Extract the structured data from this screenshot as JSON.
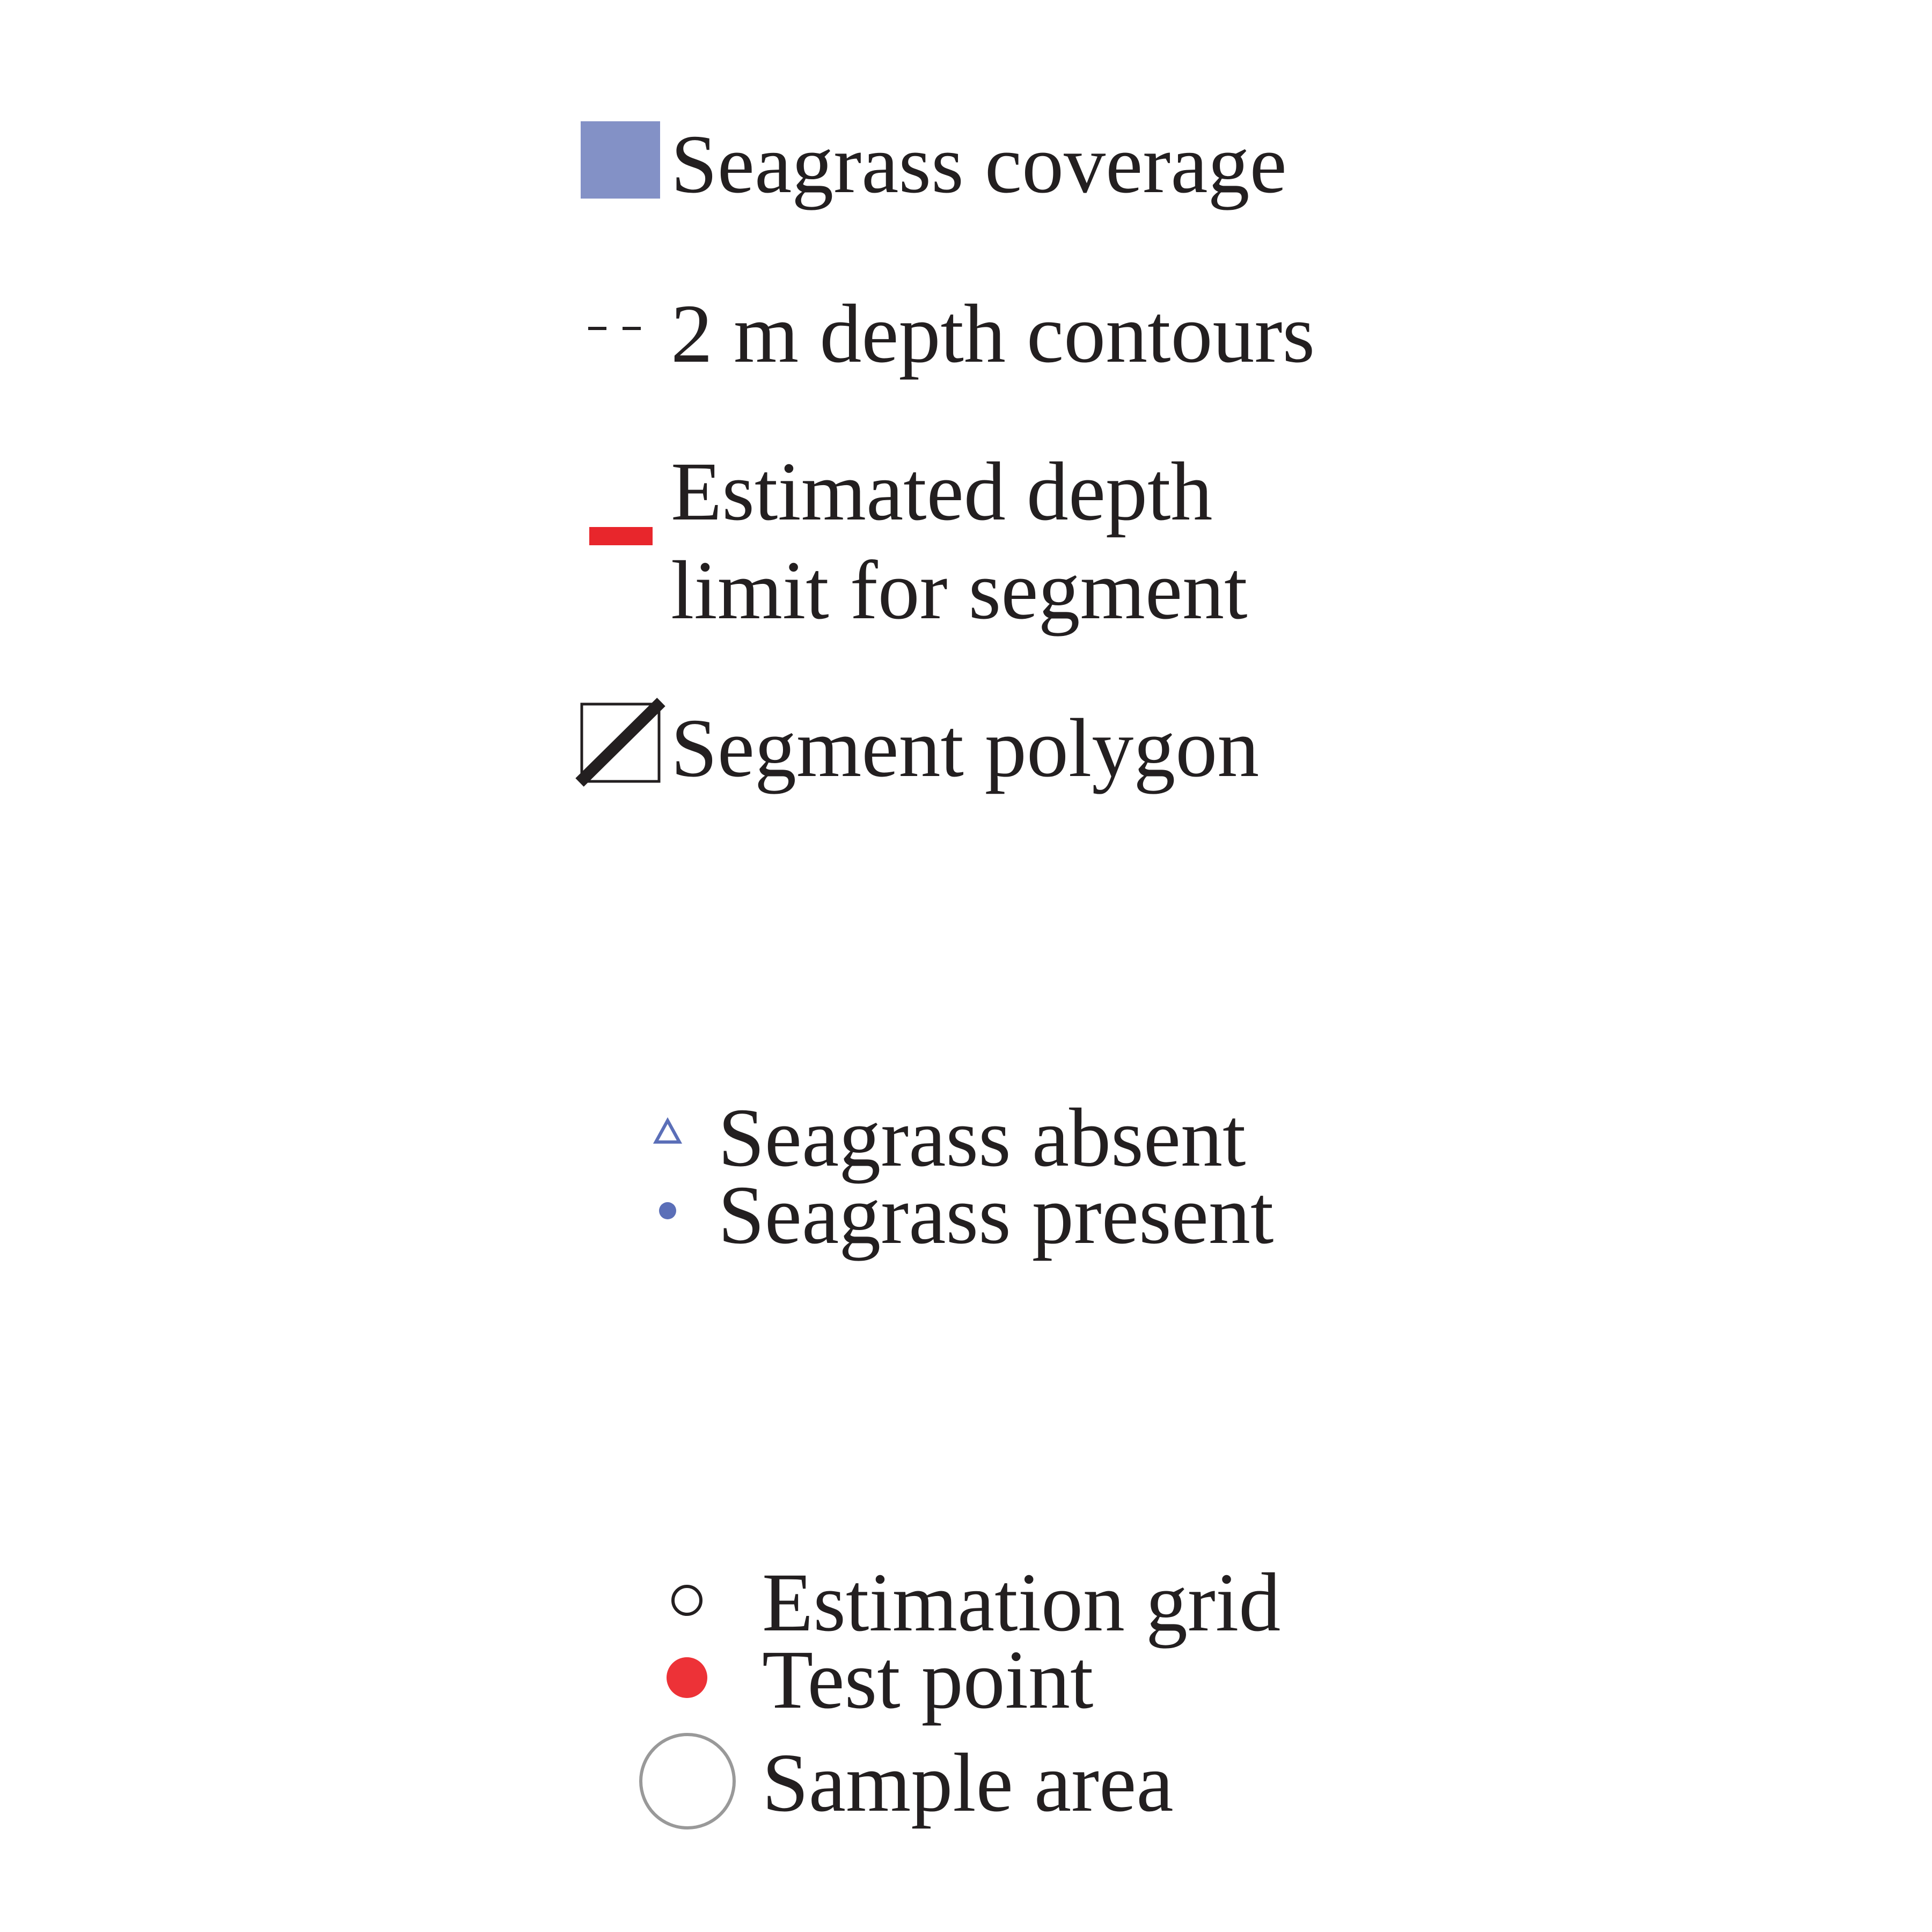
{
  "legend_group_1": {
    "seagrass_coverage": {
      "label": "Seagrass coverage",
      "color": "#8391c6",
      "icon": "filled-square-swatch"
    },
    "depth_contours": {
      "label": "2 m depth contours",
      "color": "#231f20",
      "icon": "dashed-line"
    },
    "depth_limit": {
      "label_line1": "Estimated depth",
      "label_line2": "limit for segment",
      "color": "#e8262c",
      "icon": "red-bar"
    },
    "segment_polygon": {
      "label": "Segment polygon",
      "color": "#231f20",
      "icon": "hatched-square"
    }
  },
  "legend_group_2": {
    "seagrass_absent": {
      "label": "Seagrass absent",
      "color": "#5b6fb8",
      "icon": "open-triangle"
    },
    "seagrass_present": {
      "label": "Seagrass present",
      "color": "#5b6fb8",
      "icon": "filled-dot"
    }
  },
  "legend_group_3": {
    "estimation_grid": {
      "label": "Estimation grid",
      "color": "#231f20",
      "icon": "open-circle"
    },
    "test_point": {
      "label": "Test point",
      "color": "#ed3237",
      "icon": "filled-circle"
    },
    "sample_area": {
      "label": "Sample area",
      "color": "#999999",
      "icon": "large-open-circle"
    }
  }
}
